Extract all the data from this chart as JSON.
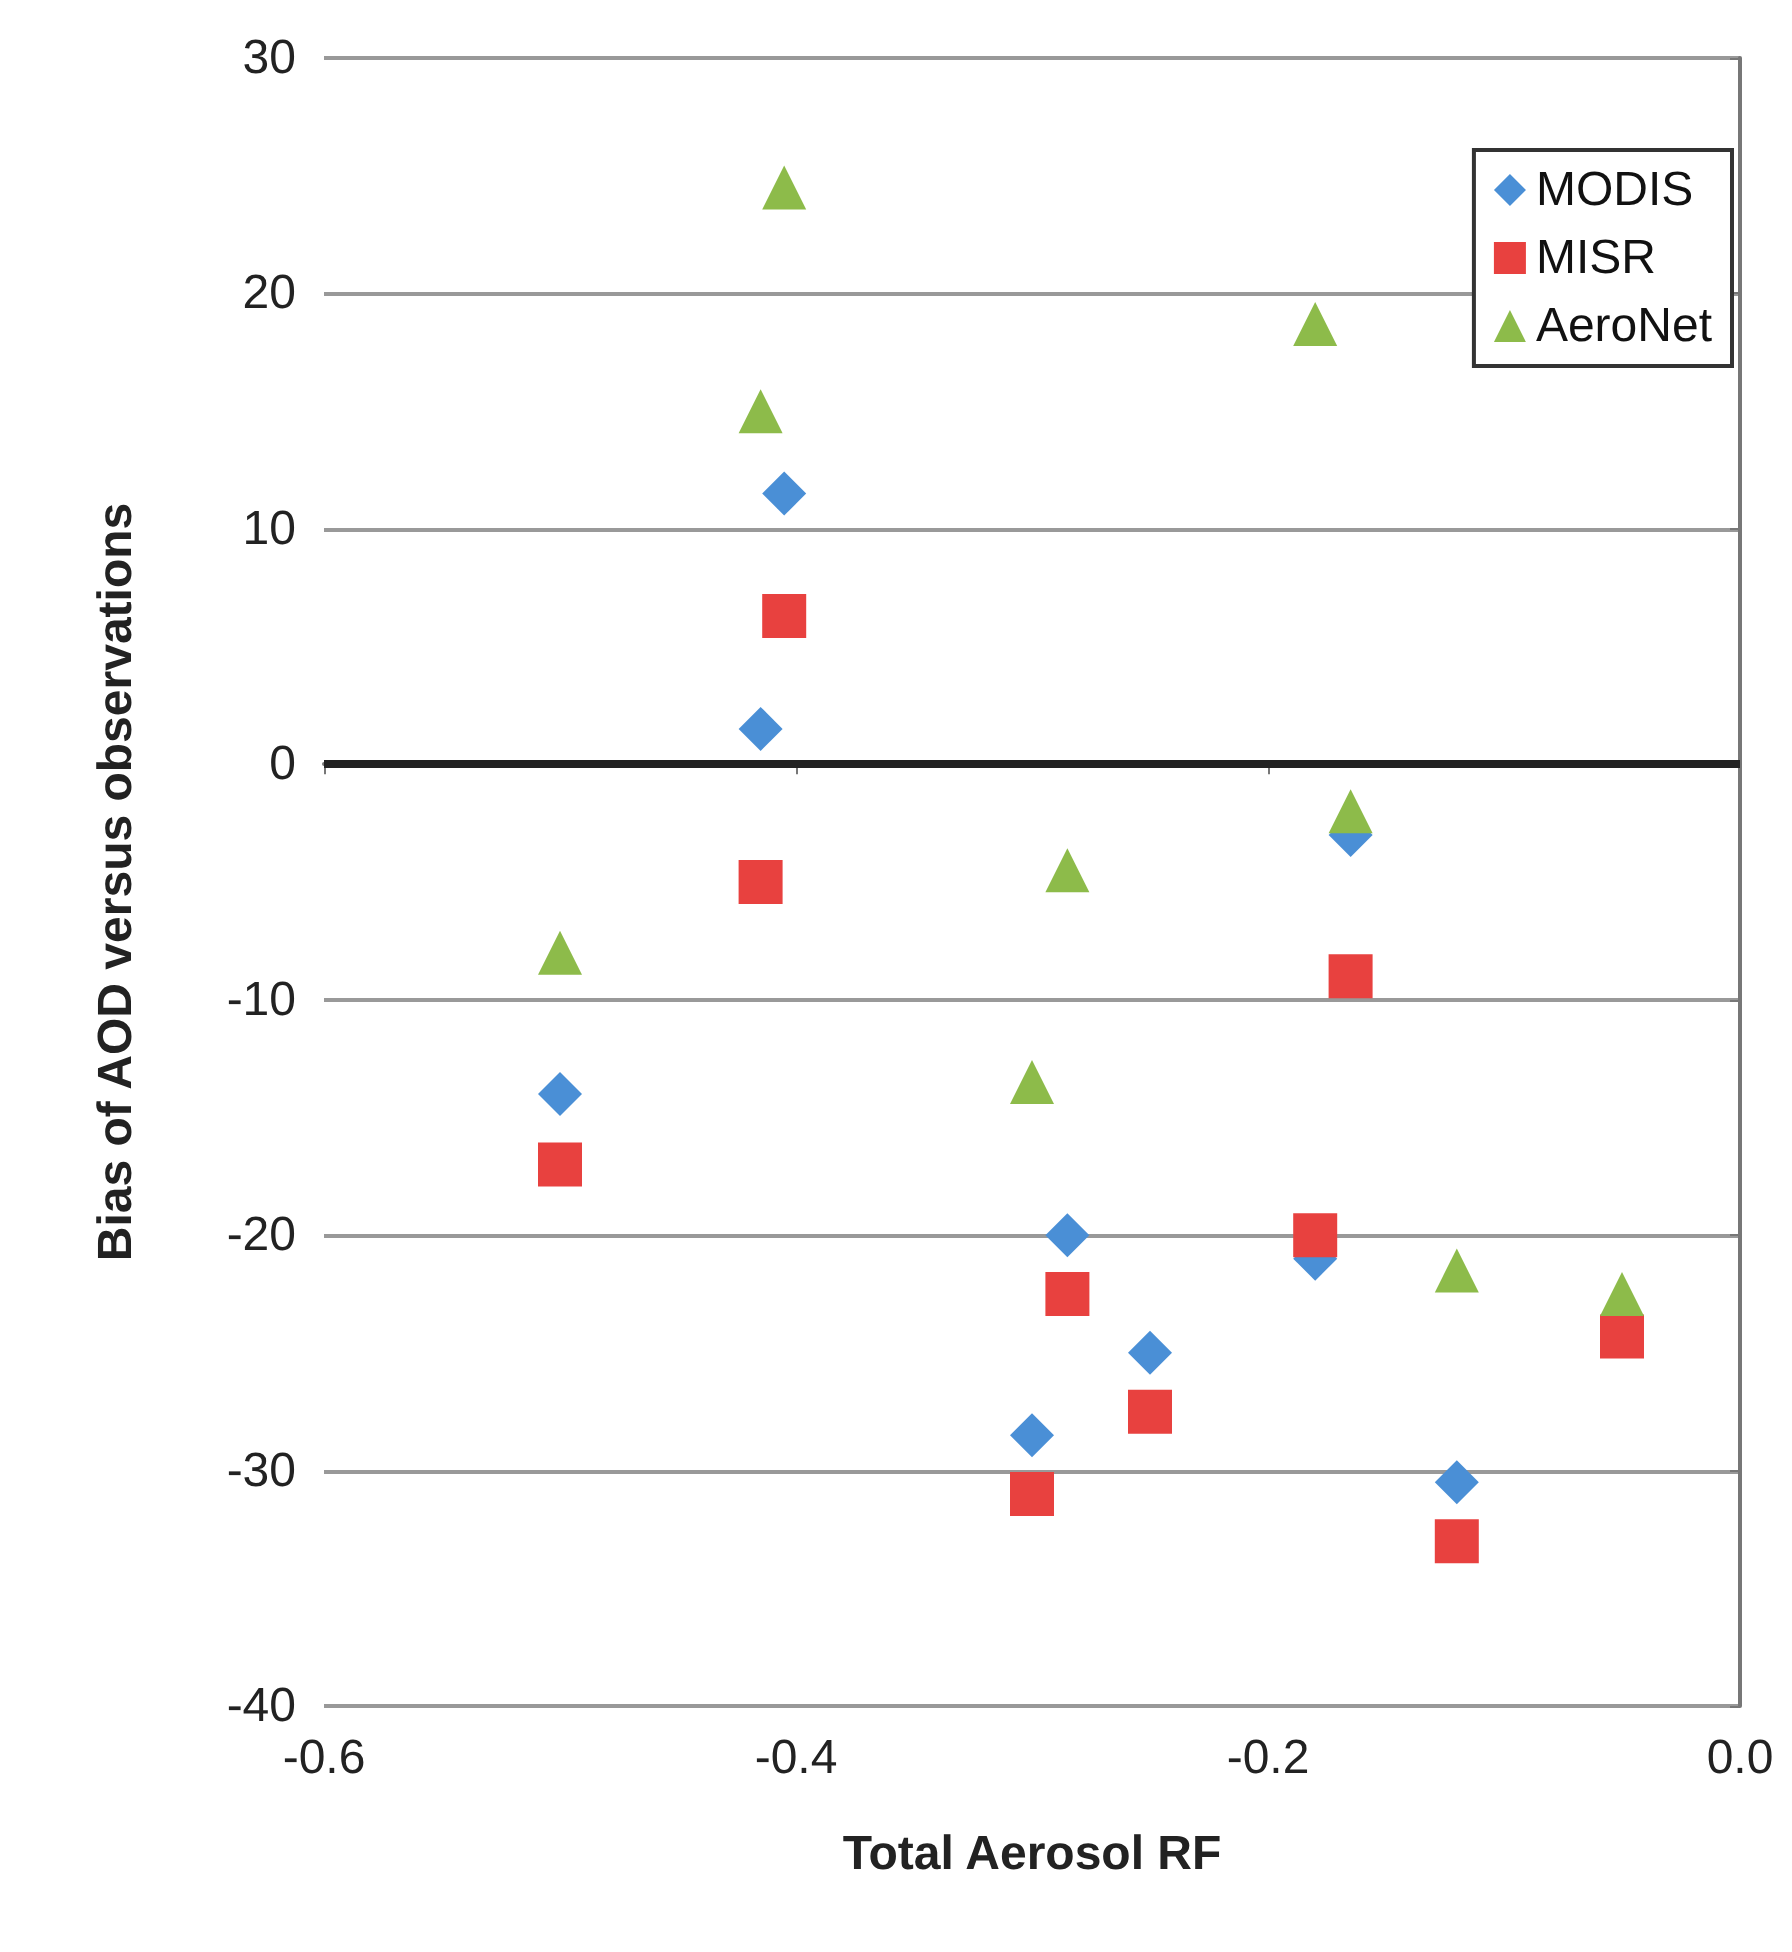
{
  "chart_data": {
    "type": "scatter",
    "xlabel": "Total Aerosol RF",
    "ylabel": "Bias of AOD versus observations",
    "xlim": [
      -0.6,
      0
    ],
    "xticks": [
      -0.6,
      -0.4,
      -0.2,
      {
        "value": 0,
        "label": "0.0"
      }
    ],
    "ylim": [
      -40,
      30
    ],
    "yticks": [
      -40,
      -30,
      -20,
      -10,
      0,
      10,
      20,
      30
    ],
    "grid": "y",
    "legend": "top right",
    "ref_lines": [
      {
        "axis": "y",
        "value": 0,
        "color": "#222222"
      }
    ],
    "series": [
      {
        "name": "MODIS",
        "color": "#4a8fd6",
        "marker": "diamond",
        "x": [
          -0.5,
          -0.415,
          -0.405,
          -0.3,
          -0.285,
          -0.25,
          -0.18,
          -0.165,
          -0.12
        ],
        "values": [
          -14,
          1.5,
          11.5,
          -28.5,
          -20,
          -25,
          -21,
          -3,
          -30.5
        ]
      },
      {
        "name": "MISR",
        "color": "#e8413f",
        "marker": "square",
        "x": [
          -0.5,
          -0.415,
          -0.405,
          -0.3,
          -0.285,
          -0.25,
          -0.18,
          -0.165,
          -0.12,
          -0.05
        ],
        "values": [
          -17,
          -5,
          6.3,
          -31,
          -22.5,
          -27.5,
          -20,
          -9,
          -33,
          -24.3
        ]
      },
      {
        "name": "AeroNet",
        "color": "#8dbb4a",
        "marker": "triangle",
        "x": [
          -0.5,
          -0.415,
          -0.405,
          -0.3,
          -0.285,
          -0.18,
          -0.165,
          -0.12,
          -0.05
        ],
        "values": [
          -8,
          15,
          24.5,
          -13.5,
          -4.5,
          18.7,
          -2,
          -21.5,
          -22.5
        ]
      }
    ]
  }
}
